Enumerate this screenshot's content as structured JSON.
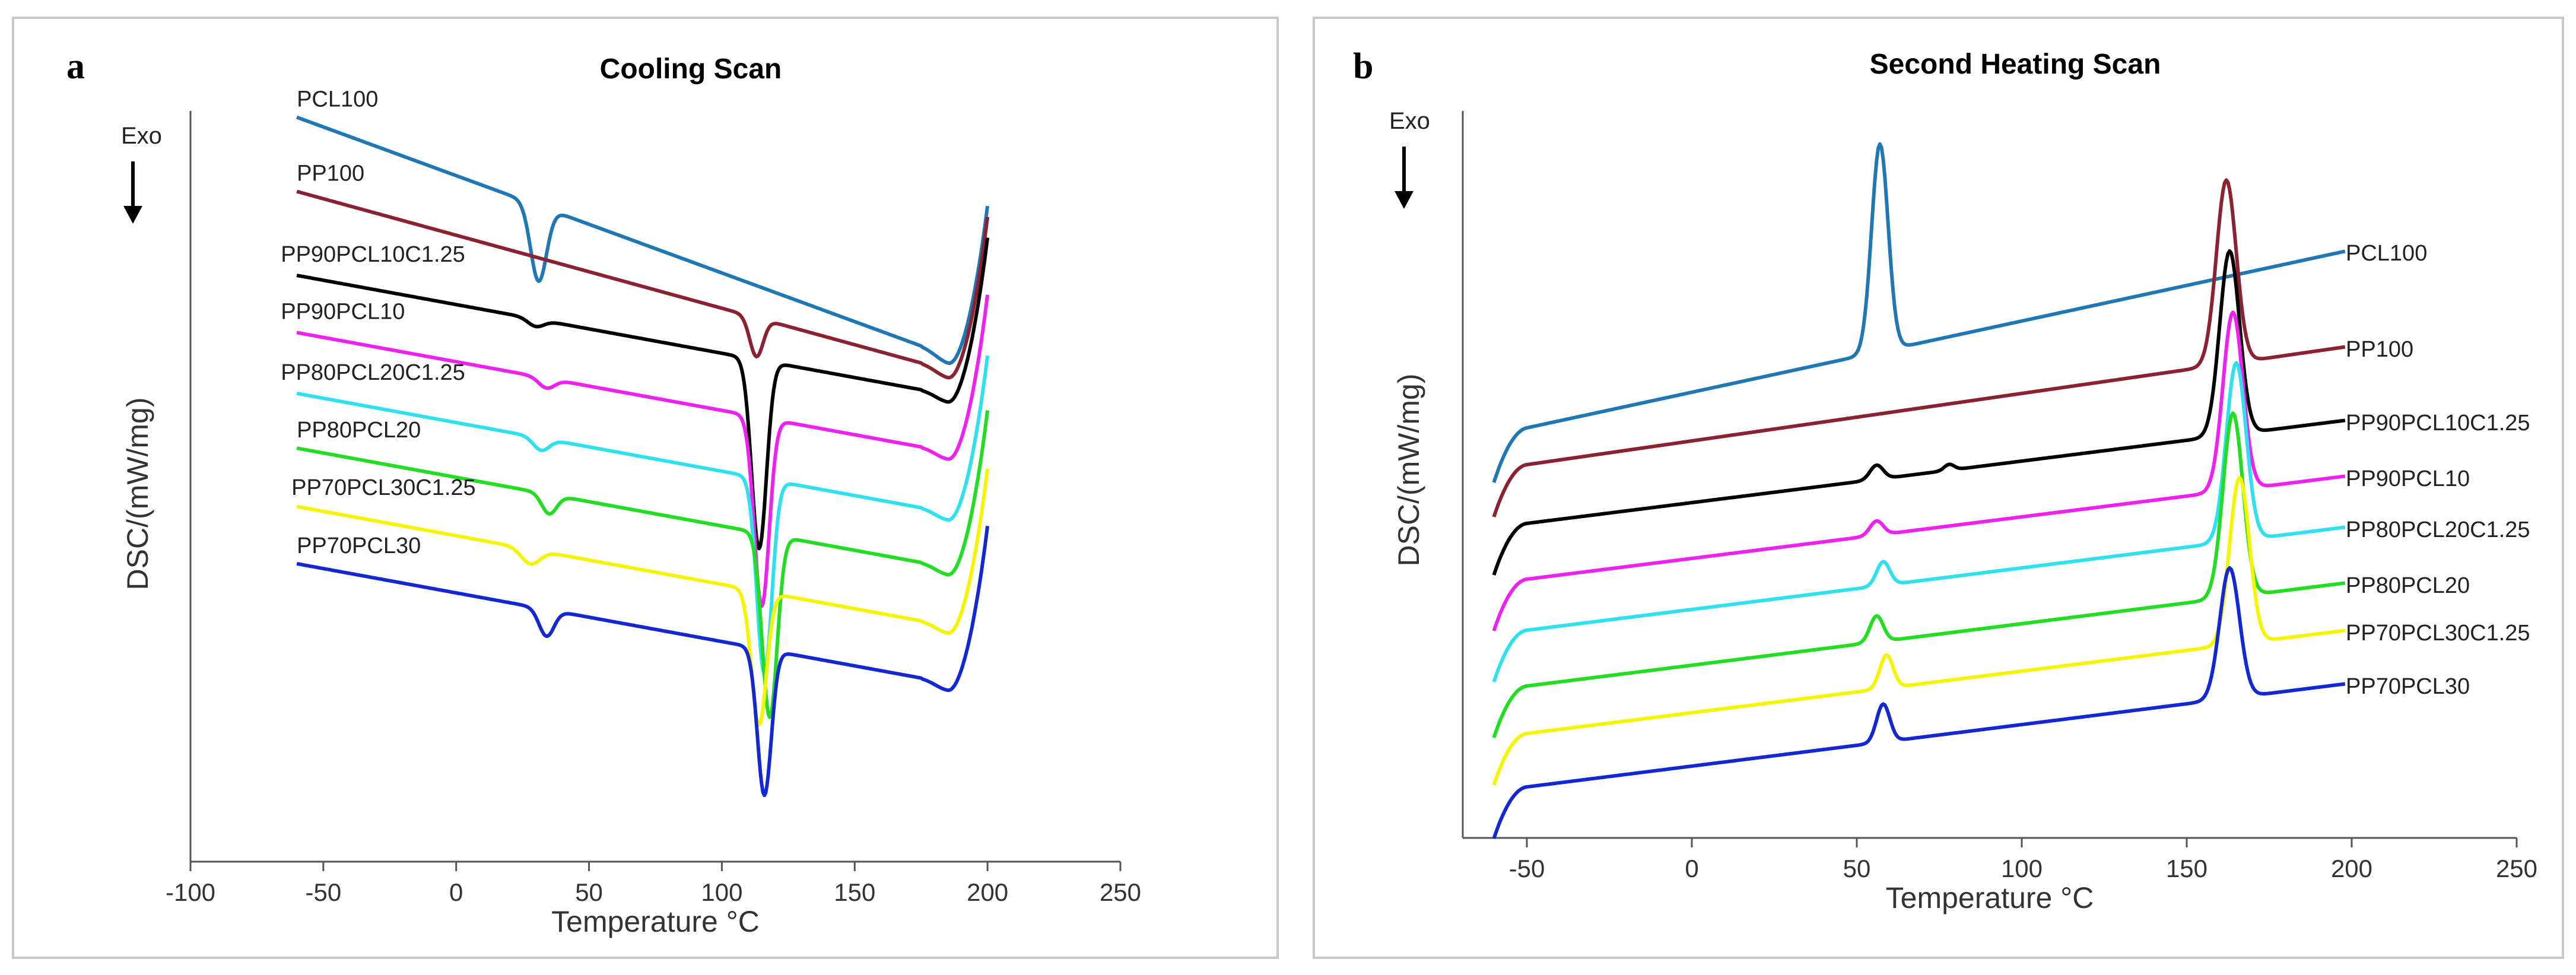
{
  "chart_data": [
    {
      "type": "line",
      "panel_label": "a",
      "title": "Cooling Scan",
      "xlabel": "Temperature °C",
      "ylabel": "DSC/(mW/mg)",
      "annotation": "Exo",
      "xlim": [
        -100,
        250
      ],
      "xticks": [
        -100,
        -50,
        0,
        50,
        100,
        150,
        200,
        250
      ],
      "grid": false,
      "x_range": [
        -60,
        200
      ],
      "series": [
        {
          "name": "PCL100",
          "color": "#1f77b4",
          "offset": 0.0,
          "slope": -0.008,
          "label_x": -60,
          "peaks": [
            {
              "x": 31,
              "depth": -0.62,
              "width": 3.0
            }
          ]
        },
        {
          "name": "PP100",
          "color": "#8b2232",
          "offset": -0.45,
          "slope": -0.006,
          "label_x": -60,
          "peaks": [
            {
              "x": 113,
              "depth": -0.32,
              "width": 2.5
            }
          ]
        },
        {
          "name": "PP90PCL10C1.25",
          "color": "#000000",
          "offset": -0.98,
          "slope": -0.004,
          "label_x": -66,
          "peaks": [
            {
              "x": 30,
              "depth": -0.06,
              "width": 3.0
            },
            {
              "x": 114,
              "depth": -1.55,
              "width": 2.8
            }
          ]
        },
        {
          "name": "PP90PCL10",
          "color": "#ee22ee",
          "offset": -1.45,
          "slope": -0.004,
          "label_x": -66,
          "peaks": [
            {
              "x": 34,
              "depth": -0.08,
              "width": 3.0
            },
            {
              "x": 115,
              "depth": -1.55,
              "width": 2.8
            }
          ]
        },
        {
          "name": "PP80PCL20C1.25",
          "color": "#2fe0ee",
          "offset": -1.95,
          "slope": -0.004,
          "label_x": -66,
          "peaks": [
            {
              "x": 32,
              "depth": -0.1,
              "width": 3.0
            },
            {
              "x": 116,
              "depth": -1.6,
              "width": 2.8
            }
          ]
        },
        {
          "name": "PP80PCL20",
          "color": "#22dd22",
          "offset": -2.4,
          "slope": -0.004,
          "label_x": -60,
          "peaks": [
            {
              "x": 35,
              "depth": -0.16,
              "width": 2.8
            },
            {
              "x": 118,
              "depth": -1.5,
              "width": 2.8
            }
          ]
        },
        {
          "name": "PP70PCL30C1.25",
          "color": "#f5f500",
          "offset": -2.88,
          "slope": -0.004,
          "label_x": -62,
          "peaks": [
            {
              "x": 28,
              "depth": -0.12,
              "width": 3.5
            },
            {
              "x": 114,
              "depth": -1.1,
              "width": 2.8
            }
          ]
        },
        {
          "name": "PP70PCL30",
          "color": "#1428d2",
          "offset": -3.35,
          "slope": -0.004,
          "label_x": -60,
          "peaks": [
            {
              "x": 34,
              "depth": -0.22,
              "width": 2.8
            },
            {
              "x": 116,
              "depth": -1.2,
              "width": 2.6
            }
          ]
        }
      ]
    },
    {
      "type": "line",
      "panel_label": "b",
      "title": "Second Heating Scan",
      "xlabel": "Temperature °C",
      "ylabel": "DSC/(mW/mg)",
      "annotation": "Exo",
      "xlim": [
        -50,
        250
      ],
      "xticks": [
        -50,
        0,
        50,
        100,
        150,
        200,
        250
      ],
      "grid": false,
      "x_range": [
        -60,
        198
      ],
      "series": [
        {
          "name": "PCL100",
          "color": "#1f77b4",
          "offset": 0.0,
          "slope": 0.006,
          "label_x": 200,
          "peaks": [
            {
              "x": 57,
              "depth": 1.75,
              "width": 2.5
            }
          ]
        },
        {
          "name": "PP100",
          "color": "#8b2232",
          "offset": -0.45,
          "slope": 0.004,
          "label_x": 200,
          "peaks": [
            {
              "x": 162,
              "depth": 1.55,
              "width": 3.0
            }
          ]
        },
        {
          "name": "PP90PCL10C1.25",
          "color": "#000000",
          "offset": -0.98,
          "slope": 0.0035,
          "label_x": 200,
          "peaks": [
            {
              "x": 56,
              "depth": 0.12,
              "width": 2.0
            },
            {
              "x": 78,
              "depth": 0.05,
              "width": 1.5
            },
            {
              "x": 163,
              "depth": 1.55,
              "width": 3.0
            }
          ]
        },
        {
          "name": "PP90PCL10",
          "color": "#ee22ee",
          "offset": -1.45,
          "slope": 0.0035,
          "label_x": 200,
          "peaks": [
            {
              "x": 56,
              "depth": 0.12,
              "width": 2.0
            },
            {
              "x": 164,
              "depth": 1.5,
              "width": 3.0
            }
          ]
        },
        {
          "name": "PP80PCL20C1.25",
          "color": "#2fe0ee",
          "offset": -1.88,
          "slope": 0.0035,
          "label_x": 200,
          "peaks": [
            {
              "x": 58,
              "depth": 0.2,
              "width": 2.0
            },
            {
              "x": 165,
              "depth": 1.5,
              "width": 3.0
            }
          ]
        },
        {
          "name": "PP80PCL20",
          "color": "#22dd22",
          "offset": -2.35,
          "slope": 0.0035,
          "label_x": 200,
          "peaks": [
            {
              "x": 56,
              "depth": 0.22,
              "width": 2.0
            },
            {
              "x": 164,
              "depth": 1.55,
              "width": 3.0
            }
          ]
        },
        {
          "name": "PP70PCL30C1.25",
          "color": "#f5f500",
          "offset": -2.75,
          "slope": 0.0035,
          "label_x": 200,
          "peaks": [
            {
              "x": 59,
              "depth": 0.28,
              "width": 2.0
            },
            {
              "x": 166,
              "depth": 1.4,
              "width": 3.0
            }
          ]
        },
        {
          "name": "PP70PCL30",
          "color": "#1428d2",
          "offset": -3.2,
          "slope": 0.0035,
          "label_x": 200,
          "peaks": [
            {
              "x": 58,
              "depth": 0.32,
              "width": 2.0
            },
            {
              "x": 163,
              "depth": 1.1,
              "width": 3.0
            }
          ]
        }
      ]
    }
  ]
}
